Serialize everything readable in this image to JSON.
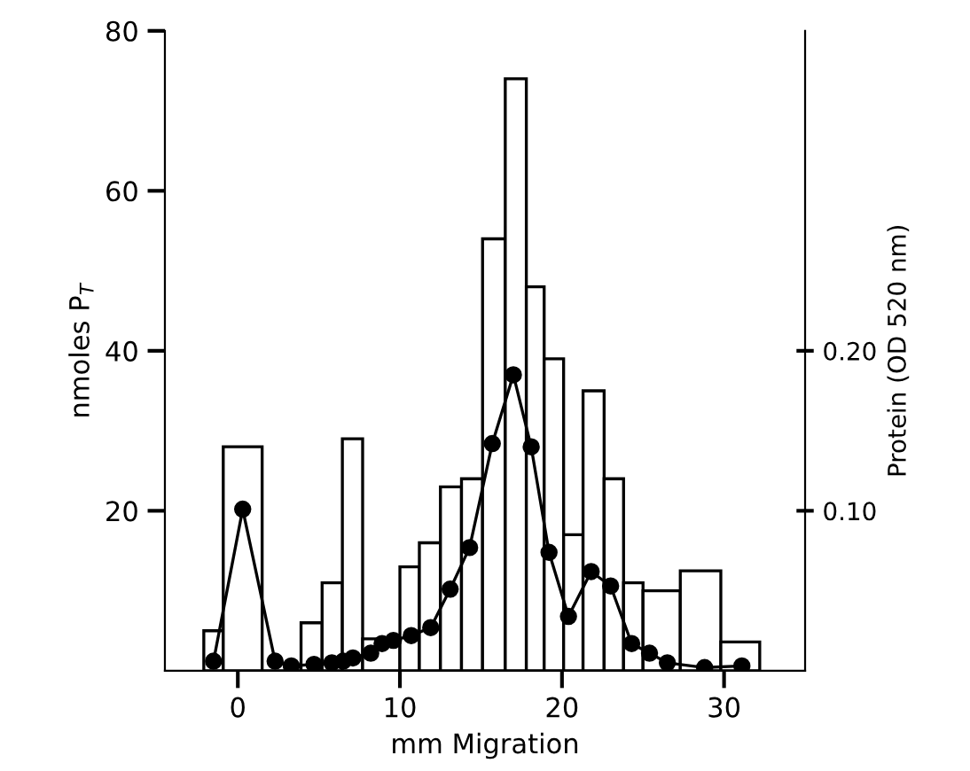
{
  "chart_data": {
    "type": "histogram",
    "xlabel": "mm Migration",
    "ylabel": "nmoles P$_{T}$",
    "y2label": "Protein (OD 520 nm)",
    "xlim": [
      -4.5,
      35
    ],
    "xticks": [
      0,
      10,
      20,
      30
    ],
    "ylim": [
      0,
      80
    ],
    "yticks": [
      20,
      40,
      60,
      80
    ],
    "y2lim": [
      0,
      0.4
    ],
    "y2ticks": [
      {
        "value": 0.1,
        "label": "0.10"
      },
      {
        "value": 0.2,
        "label": "0.20"
      }
    ],
    "series": [
      {
        "type": "histogram",
        "color": "#000000",
        "bins": [
          -2.1,
          -0.9,
          1.5,
          3.9,
          5.2,
          6.45,
          7.7,
          10.0,
          11.2,
          12.5,
          13.8,
          15.1,
          16.5,
          17.8,
          18.9,
          20.1,
          21.3,
          22.6,
          23.8,
          25.0,
          27.3,
          29.8,
          32.2
        ],
        "values": [
          5,
          28,
          0,
          6,
          11,
          29,
          4,
          13,
          16,
          23,
          24,
          54,
          74,
          48,
          39,
          17,
          35,
          24,
          11,
          10,
          12.5,
          3.6
        ]
      },
      {
        "type": "line",
        "axis": "y2",
        "color": "#000000",
        "marker": "circle",
        "x": [
          -1.5,
          0.3,
          2.3,
          3.3,
          4.7,
          5.8,
          6.5,
          7.1,
          8.2,
          8.9,
          9.6,
          10.7,
          11.9,
          13.1,
          14.3,
          15.7,
          17.0,
          18.1,
          19.2,
          20.4,
          21.8,
          23.0,
          24.3,
          25.4,
          26.5,
          28.8,
          31.1
        ],
        "values": [
          0.006,
          0.101,
          0.006,
          0.003,
          0.004,
          0.005,
          0.006,
          0.008,
          0.011,
          0.017,
          0.019,
          0.022,
          0.027,
          0.051,
          0.077,
          0.142,
          0.185,
          0.14,
          0.074,
          0.034,
          0.062,
          0.053,
          0.017,
          0.011,
          0.005,
          0.002,
          0.003
        ]
      }
    ]
  }
}
